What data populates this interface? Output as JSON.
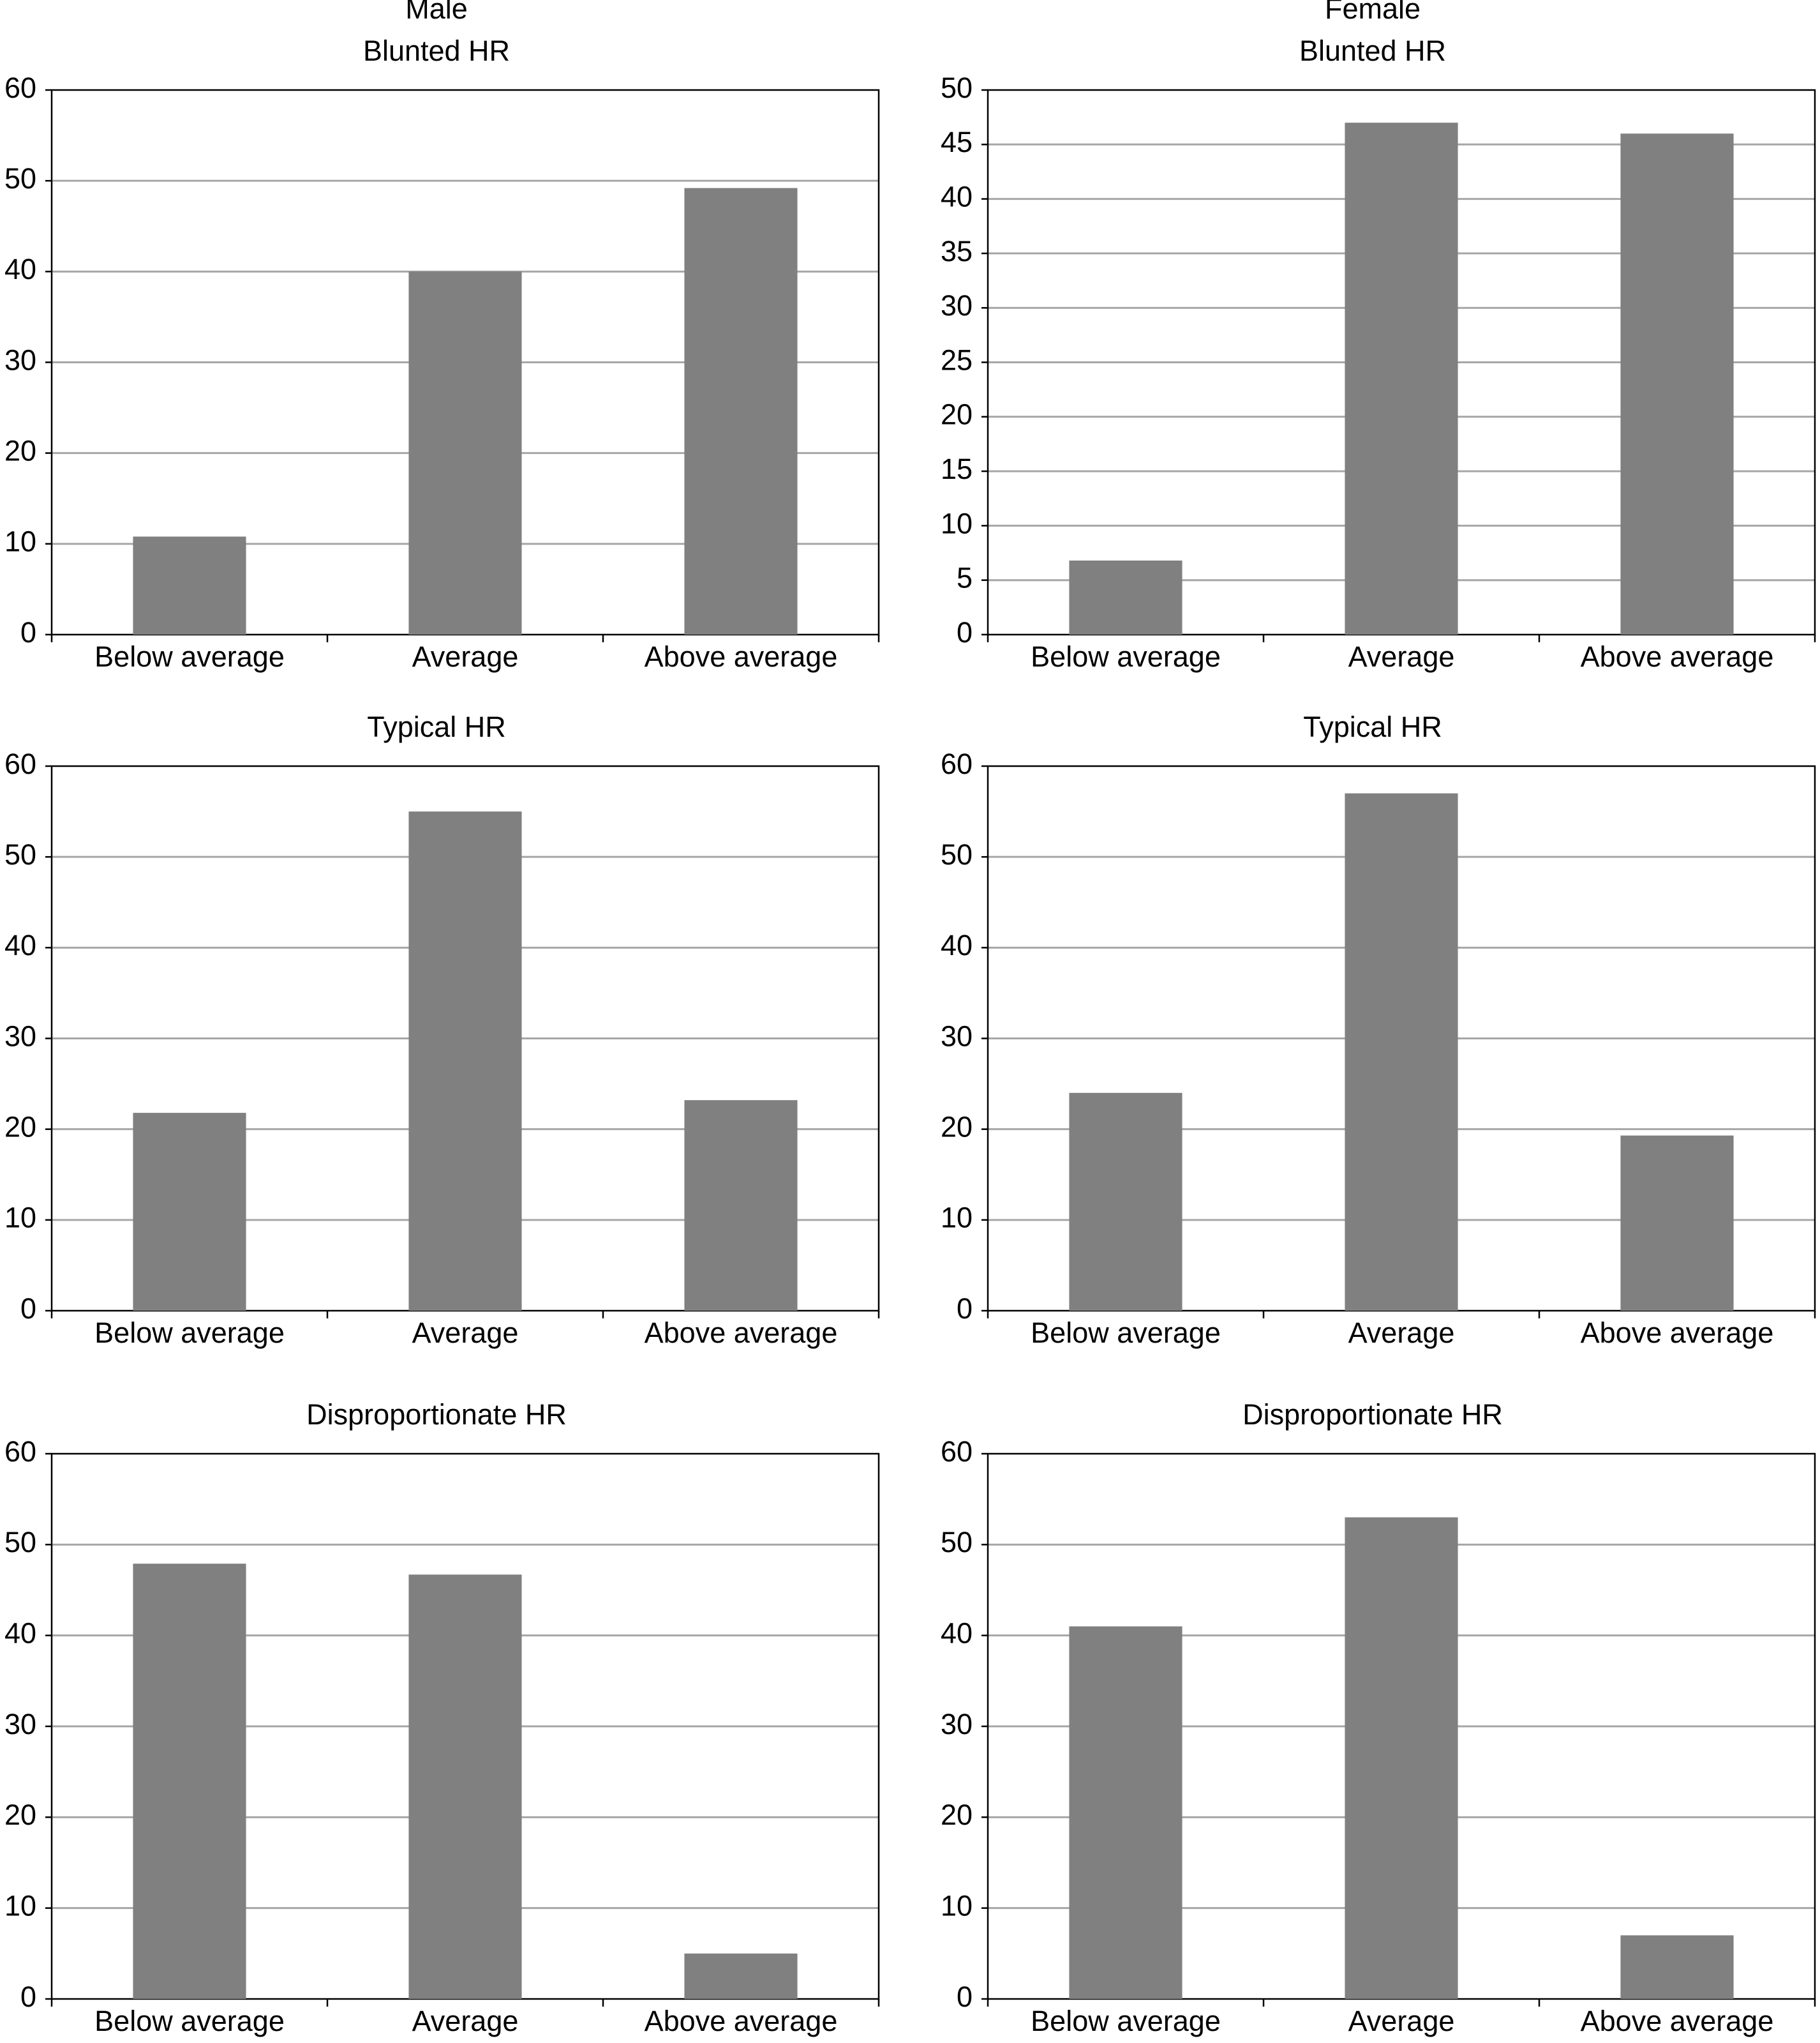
{
  "chart_data": [
    {
      "type": "bar",
      "title": "Male",
      "subtitle": "Blunted HR",
      "categories": [
        "Below average",
        "Average",
        "Above average"
      ],
      "values": [
        10.8,
        40,
        49.2
      ],
      "color": "#808080",
      "ylim": [
        0,
        60
      ],
      "yticks": [
        0,
        10,
        20,
        30,
        40,
        50,
        60
      ],
      "grid": true
    },
    {
      "type": "bar",
      "title": "Female",
      "subtitle": "Blunted HR",
      "categories": [
        "Below average",
        "Average",
        "Above average"
      ],
      "values": [
        6.8,
        47,
        46
      ],
      "color": "#808080",
      "ylim": [
        0,
        50
      ],
      "yticks": [
        0,
        5,
        10,
        15,
        20,
        25,
        30,
        35,
        40,
        45,
        50
      ],
      "grid": true
    },
    {
      "type": "bar",
      "title": "Typical HR",
      "categories": [
        "Below average",
        "Average",
        "Above average"
      ],
      "values": [
        21.8,
        55,
        23.2
      ],
      "color": "#808080",
      "ylim": [
        0,
        60
      ],
      "yticks": [
        0,
        10,
        20,
        30,
        40,
        50,
        60
      ],
      "grid": true
    },
    {
      "type": "bar",
      "title": "Typical HR",
      "categories": [
        "Below average",
        "Average",
        "Above average"
      ],
      "values": [
        24,
        57,
        19.3
      ],
      "color": "#808080",
      "ylim": [
        0,
        60
      ],
      "yticks": [
        0,
        10,
        20,
        30,
        40,
        50,
        60
      ],
      "grid": true
    },
    {
      "type": "bar",
      "title": "Disproportionate HR",
      "categories": [
        "Below average",
        "Average",
        "Above average"
      ],
      "values": [
        47.9,
        46.7,
        5
      ],
      "color": "#808080",
      "ylim": [
        0,
        60
      ],
      "yticks": [
        0,
        10,
        20,
        30,
        40,
        50,
        60
      ],
      "grid": true
    },
    {
      "type": "bar",
      "title": "Disproportionate HR",
      "categories": [
        "Below average",
        "Average",
        "Above average"
      ],
      "values": [
        41,
        53,
        7
      ],
      "color": "#808080",
      "ylim": [
        0,
        60
      ],
      "yticks": [
        0,
        10,
        20,
        30,
        40,
        50,
        60
      ],
      "grid": true
    }
  ]
}
